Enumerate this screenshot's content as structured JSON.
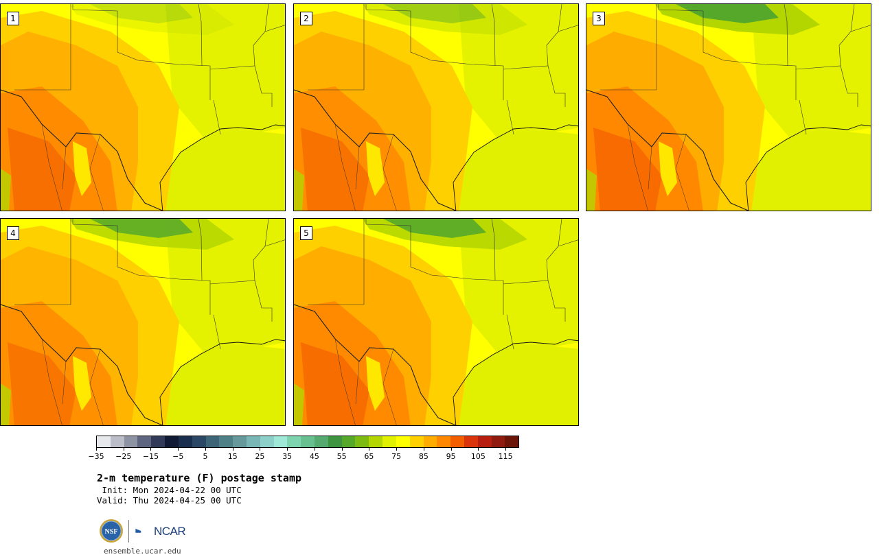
{
  "panels": [
    {
      "label": "1"
    },
    {
      "label": "2"
    },
    {
      "label": "3"
    },
    {
      "label": "4"
    },
    {
      "label": "5"
    }
  ],
  "colorbar": {
    "colors": [
      "#e6e8ec",
      "#bbbec8",
      "#8e93a3",
      "#5e6580",
      "#323a5a",
      "#111a35",
      "#1a2e4d",
      "#2b4766",
      "#3e6478",
      "#4f8088",
      "#66989c",
      "#7ab6b5",
      "#8dd0c9",
      "#9fe8d8",
      "#7fd4b0",
      "#68bf8f",
      "#55ab6f",
      "#3f9442",
      "#56a82a",
      "#7dbb13",
      "#b4d600",
      "#e0f000",
      "#ffff00",
      "#ffd000",
      "#ffac00",
      "#ff8800",
      "#f35f00",
      "#d9340b",
      "#b61e10",
      "#8f1a10",
      "#6b1408"
    ],
    "tick_labels": [
      "−35",
      "−25",
      "−15",
      "−5",
      "5",
      "15",
      "25",
      "35",
      "45",
      "55",
      "65",
      "75",
      "85",
      "95",
      "105",
      "115"
    ]
  },
  "title": "2-m temperature (F) postage stamp",
  "init_line": " Init: Mon 2024-04-22 00 UTC",
  "valid_line": "Valid: Thu 2024-04-25 00 UTC",
  "logos": {
    "nsf": "NSF",
    "ncar": "NCAR"
  },
  "footer_url": "ensemble.ucar.edu"
}
